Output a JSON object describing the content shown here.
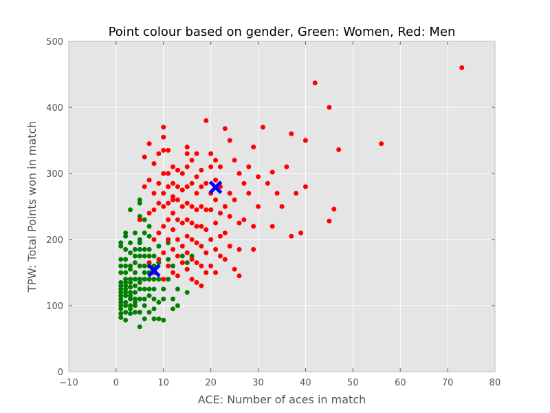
{
  "chart_data": {
    "type": "scatter",
    "title": "Point colour based on gender, Green: Women, Red: Men",
    "xlabel": "ACE: Number of aces in match",
    "ylabel": "TPW: Total Points won in match",
    "xlim": [
      -10,
      80
    ],
    "ylim": [
      0,
      500
    ],
    "xticks": [
      -10,
      0,
      10,
      20,
      30,
      40,
      50,
      60,
      70,
      80
    ],
    "yticks": [
      0,
      100,
      200,
      300,
      400,
      500
    ],
    "xtick_labels": [
      "−10",
      "0",
      "10",
      "20",
      "30",
      "40",
      "50",
      "60",
      "70",
      "80"
    ],
    "ytick_labels": [
      "0",
      "100",
      "200",
      "300",
      "400",
      "500"
    ],
    "grid": true,
    "background": "#e5e5e5",
    "series": [
      {
        "color": "#008000",
        "x": [
          1,
          1,
          1,
          1,
          1,
          1,
          1,
          1,
          1,
          1,
          1,
          1,
          1,
          1,
          1,
          1,
          2,
          2,
          2,
          2,
          2,
          2,
          2,
          2,
          2,
          2,
          2,
          2,
          2,
          2,
          2,
          2,
          3,
          3,
          3,
          3,
          3,
          3,
          3,
          3,
          3,
          3,
          3,
          3,
          3,
          3,
          4,
          4,
          4,
          4,
          4,
          4,
          4,
          4,
          4,
          4,
          4,
          4,
          5,
          5,
          5,
          5,
          5,
          5,
          5,
          5,
          5,
          5,
          5,
          5,
          5,
          5,
          6,
          6,
          6,
          6,
          6,
          6,
          6,
          6,
          6,
          6,
          6,
          7,
          7,
          7,
          7,
          7,
          7,
          7,
          7,
          7,
          7,
          8,
          8,
          8,
          8,
          8,
          8,
          8,
          8,
          9,
          9,
          9,
          9,
          9,
          10,
          10,
          10,
          11,
          11,
          11,
          12,
          12,
          12,
          13,
          13,
          14,
          15,
          15,
          15,
          16,
          20
        ],
        "y": [
          82,
          88,
          95,
          100,
          105,
          110,
          115,
          120,
          125,
          130,
          135,
          150,
          160,
          170,
          190,
          195,
          78,
          90,
          100,
          105,
          115,
          120,
          125,
          130,
          135,
          140,
          150,
          160,
          170,
          185,
          205,
          210,
          88,
          95,
          100,
          110,
          115,
          120,
          128,
          135,
          140,
          155,
          160,
          180,
          195,
          245,
          90,
          100,
          105,
          110,
          120,
          130,
          140,
          150,
          165,
          175,
          185,
          210,
          68,
          90,
          110,
          125,
          135,
          140,
          160,
          175,
          185,
          195,
          200,
          235,
          255,
          260,
          80,
          100,
          110,
          125,
          140,
          150,
          160,
          175,
          185,
          210,
          230,
          90,
          115,
          125,
          140,
          150,
          160,
          175,
          185,
          205,
          220,
          80,
          95,
          110,
          125,
          140,
          150,
          160,
          175,
          80,
          105,
          140,
          165,
          190,
          78,
          110,
          125,
          140,
          170,
          195,
          95,
          110,
          160,
          100,
          125,
          175,
          120,
          155,
          165,
          175,
          245
        ]
      },
      {
        "color": "#ff0000",
        "x": [
          5,
          6,
          6,
          7,
          7,
          7,
          7,
          8,
          8,
          8,
          8,
          8,
          9,
          9,
          9,
          9,
          9,
          10,
          10,
          10,
          10,
          10,
          10,
          10,
          10,
          10,
          11,
          11,
          11,
          11,
          11,
          11,
          11,
          12,
          12,
          12,
          12,
          12,
          12,
          12,
          12,
          13,
          13,
          13,
          13,
          13,
          13,
          13,
          14,
          14,
          14,
          14,
          14,
          14,
          15,
          15,
          15,
          15,
          15,
          15,
          15,
          15,
          15,
          16,
          16,
          16,
          16,
          16,
          16,
          16,
          17,
          17,
          17,
          17,
          17,
          17,
          17,
          17,
          18,
          18,
          18,
          18,
          18,
          18,
          18,
          19,
          19,
          19,
          19,
          19,
          19,
          20,
          20,
          20,
          20,
          20,
          20,
          21,
          21,
          21,
          21,
          21,
          21,
          22,
          22,
          22,
          22,
          22,
          23,
          23,
          23,
          23,
          24,
          24,
          24,
          24,
          25,
          25,
          25,
          26,
          26,
          26,
          26,
          27,
          27,
          28,
          28,
          29,
          29,
          29,
          30,
          30,
          31,
          32,
          33,
          33,
          34,
          35,
          36,
          37,
          37,
          38,
          39,
          40,
          40,
          42,
          45,
          45,
          46,
          47,
          56,
          73
        ],
        "y": [
          230,
          280,
          325,
          165,
          240,
          290,
          345,
          150,
          200,
          245,
          270,
          315,
          170,
          210,
          255,
          285,
          330,
          140,
          180,
          220,
          250,
          270,
          300,
          335,
          355,
          370,
          160,
          200,
          230,
          255,
          280,
          300,
          335,
          150,
          185,
          215,
          240,
          265,
          285,
          310,
          260,
          145,
          175,
          200,
          230,
          260,
          280,
          305,
          165,
          190,
          225,
          250,
          275,
          300,
          155,
          180,
          205,
          230,
          255,
          280,
          310,
          330,
          340,
          140,
          170,
          200,
          225,
          250,
          285,
          320,
          135,
          165,
          195,
          220,
          245,
          270,
          295,
          330,
          130,
          160,
          190,
          220,
          250,
          280,
          305,
          150,
          180,
          215,
          245,
          285,
          380,
          160,
          200,
          245,
          270,
          310,
          330,
          150,
          185,
          225,
          260,
          290,
          320,
          175,
          205,
          240,
          280,
          310,
          170,
          210,
          250,
          368,
          190,
          235,
          270,
          350,
          155,
          260,
          320,
          145,
          185,
          225,
          300,
          230,
          285,
          270,
          310,
          185,
          220,
          340,
          250,
          295,
          370,
          285,
          220,
          302,
          270,
          250,
          310,
          205,
          360,
          270,
          210,
          280,
          350,
          437,
          228,
          400,
          246,
          336,
          345,
          460
        ]
      }
    ],
    "centroids": {
      "color": "#0000ff",
      "points": [
        {
          "x": 8,
          "y": 153
        },
        {
          "x": 21,
          "y": 279
        }
      ]
    }
  }
}
